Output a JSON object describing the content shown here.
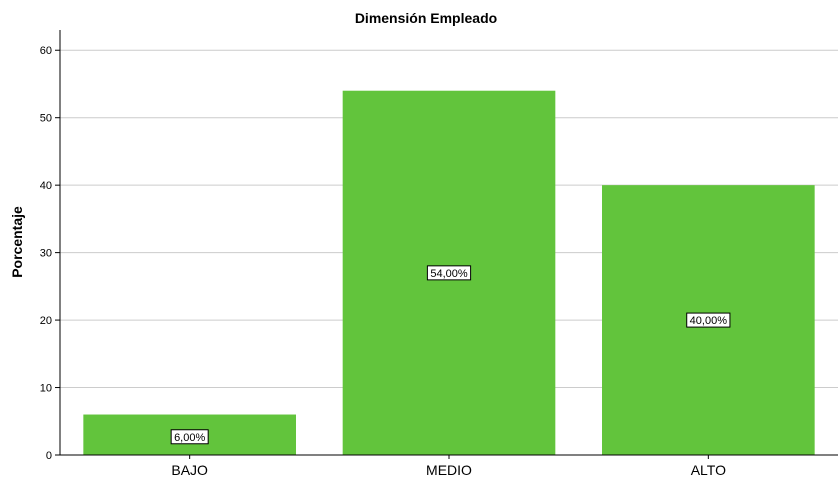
{
  "chart_data": {
    "type": "bar",
    "title": "Dimensión Empleado",
    "xlabel": "",
    "ylabel": "Porcentaje",
    "categories": [
      "BAJO",
      "MEDIO",
      "ALTO"
    ],
    "values": [
      6,
      54,
      40
    ],
    "data_labels": [
      "6,00%",
      "54,00%",
      "40,00%"
    ],
    "ylim": [
      0,
      63
    ],
    "yticks": [
      0,
      10,
      20,
      30,
      40,
      50,
      60
    ],
    "grid": true,
    "legend": "none",
    "bar_color": "#62c43c",
    "grid_color": "#cccccc"
  }
}
